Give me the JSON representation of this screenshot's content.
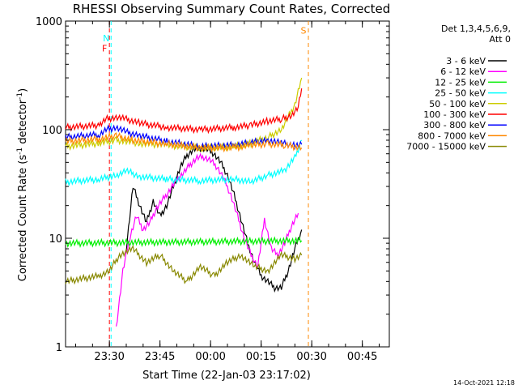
{
  "chart_data": {
    "type": "line",
    "title": "RHESSI Observing Summary Count Rates, Corrected",
    "xlabel": "Start Time (22-Jan-03 23:17:02)",
    "ylabel": "Corrected Count Rate (s⁻¹ detector⁻¹)",
    "ylabel_main": "Corrected Count Rate (s",
    "ylabel_sup1": "-1",
    "ylabel_mid": " detector",
    "ylabel_sup2": "-1",
    "ylabel_end": ")",
    "yscale": "log",
    "ylim": [
      1,
      1000
    ],
    "xlim_minutes": [
      0,
      96
    ],
    "x_unit": "minutes since 23:17:02",
    "xticks": [
      {
        "label": "23:30",
        "min": 13
      },
      {
        "label": "23:45",
        "min": 28
      },
      {
        "label": "00:00",
        "min": 43
      },
      {
        "label": "00:15",
        "min": 58
      },
      {
        "label": "00:30",
        "min": 73
      },
      {
        "label": "00:45",
        "min": 88
      }
    ],
    "yticks": [
      {
        "label": "1",
        "v": 1
      },
      {
        "label": "10",
        "v": 10
      },
      {
        "label": "100",
        "v": 100
      },
      {
        "label": "1000",
        "v": 1000
      }
    ],
    "legend_header": [
      "Det 1,3,4,5,6,9,",
      "Att 0"
    ],
    "legend_placement": "top-right outside",
    "timestamp": "14-Oct-2021 12:18",
    "series": [
      {
        "name": "3 - 6 keV",
        "color": "#000000",
        "x": [
          18,
          20,
          22,
          24,
          26,
          28,
          30,
          32,
          34,
          36,
          38,
          40,
          42,
          44,
          46,
          48,
          50,
          52,
          54,
          56,
          58,
          60,
          62,
          64,
          66,
          68,
          70
        ],
        "values": [
          8,
          30,
          20,
          14,
          22,
          16,
          20,
          30,
          45,
          58,
          66,
          68,
          66,
          60,
          50,
          38,
          25,
          15,
          9,
          6,
          4.5,
          4,
          3.5,
          3.5,
          5,
          8,
          12
        ]
      },
      {
        "name": "6 - 12 keV",
        "color": "#ff00ff",
        "x": [
          15,
          17,
          19,
          21,
          23,
          25,
          27,
          29,
          31,
          33,
          35,
          37,
          39,
          41,
          43,
          45,
          47,
          49,
          51,
          53,
          55,
          57,
          59,
          61,
          63,
          65,
          67,
          69
        ],
        "values": [
          1.5,
          5,
          10,
          16,
          12,
          14,
          19,
          23,
          28,
          35,
          40,
          48,
          55,
          56,
          52,
          45,
          35,
          25,
          16,
          10,
          7,
          5.5,
          15,
          8,
          7,
          9,
          13,
          17
        ]
      },
      {
        "name": "12 - 25 keV",
        "color": "#00ee00",
        "x": [
          0,
          70
        ],
        "values": [
          9,
          9.5
        ]
      },
      {
        "name": "25 - 50 keV",
        "color": "#00ffff",
        "x": [
          0,
          10,
          15,
          18,
          22,
          30,
          40,
          50,
          55,
          60,
          65,
          68,
          70
        ],
        "values": [
          33,
          35,
          38,
          42,
          37,
          35,
          34,
          35,
          33,
          38,
          42,
          55,
          80
        ]
      },
      {
        "name": "50 - 100 keV",
        "color": "#cccc00",
        "x": [
          0,
          10,
          15,
          18,
          22,
          30,
          40,
          50,
          55,
          60,
          64,
          66,
          68,
          70
        ],
        "values": [
          70,
          75,
          80,
          78,
          75,
          72,
          68,
          70,
          75,
          85,
          100,
          130,
          170,
          300
        ]
      },
      {
        "name": "100 - 300 keV",
        "color": "#ff0000",
        "x": [
          0,
          10,
          12,
          15,
          18,
          22,
          30,
          40,
          50,
          55,
          60,
          64,
          67,
          69,
          70
        ],
        "values": [
          105,
          110,
          125,
          130,
          125,
          115,
          105,
          100,
          105,
          110,
          120,
          125,
          135,
          160,
          240
        ]
      },
      {
        "name": "300 - 800 keV",
        "color": "#0000ff",
        "x": [
          0,
          10,
          12,
          15,
          18,
          22,
          30,
          40,
          50,
          55,
          60,
          64,
          68,
          70
        ],
        "values": [
          85,
          90,
          100,
          105,
          95,
          88,
          78,
          70,
          72,
          76,
          80,
          75,
          72,
          73
        ]
      },
      {
        "name": "800 - 7000 keV",
        "color": "#ff8800",
        "x": [
          0,
          10,
          15,
          20,
          30,
          40,
          50,
          55,
          60,
          65,
          70
        ],
        "values": [
          78,
          82,
          88,
          80,
          74,
          68,
          68,
          72,
          74,
          72,
          68
        ]
      },
      {
        "name": "7000 - 15000 keV",
        "color": "#888800",
        "x": [
          0,
          10,
          13,
          16,
          20,
          24,
          28,
          32,
          36,
          40,
          44,
          48,
          52,
          56,
          60,
          64,
          68,
          70
        ],
        "values": [
          4,
          4.5,
          5,
          7,
          8,
          6,
          7,
          5,
          4,
          5.5,
          4.5,
          6,
          7,
          5.5,
          5,
          7,
          6.5,
          7
        ]
      }
    ],
    "annotations": [
      {
        "label": "N",
        "color": "#00ffff",
        "x_min": 13.5,
        "y": 700,
        "desc": "night marker"
      },
      {
        "label": "F",
        "color": "#ff0000",
        "x_min": 13,
        "y": 560,
        "desc": "flare flag"
      },
      {
        "label": "S",
        "color": "#ff8800",
        "x_min": 72,
        "y": 820,
        "desc": "SAA flag"
      }
    ]
  }
}
